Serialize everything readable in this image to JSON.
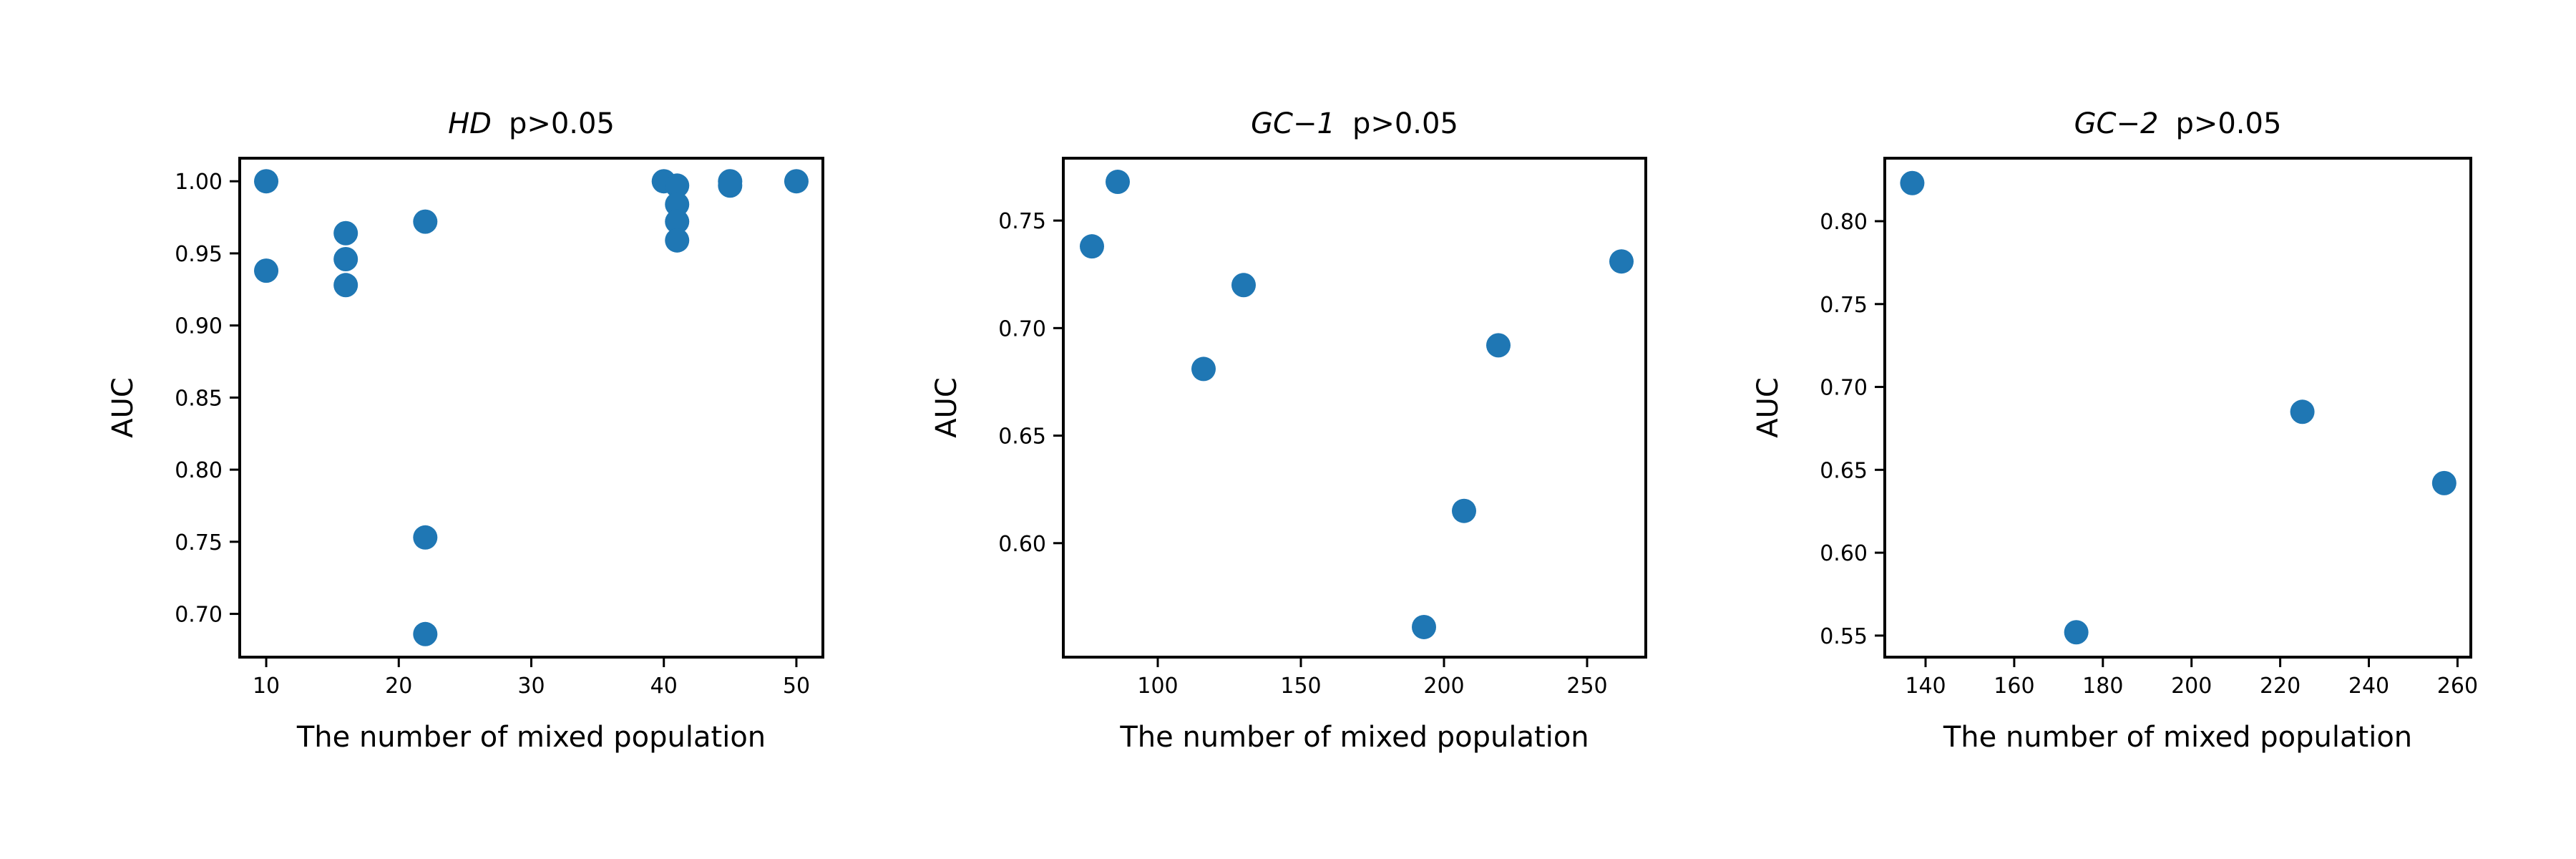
{
  "chart_data": [
    {
      "type": "scatter",
      "title_italic": "HD",
      "title_text": "p>0.05",
      "xlabel": "The number of mixed population",
      "ylabel": "AUC",
      "xlim": [
        8,
        52
      ],
      "ylim": [
        0.67,
        1.016
      ],
      "xticks": [
        10,
        20,
        30,
        40,
        50
      ],
      "xtick_labels": [
        "10",
        "20",
        "30",
        "40",
        "50"
      ],
      "yticks": [
        0.7,
        0.75,
        0.8,
        0.85,
        0.9,
        0.95,
        1.0
      ],
      "ytick_labels": [
        "0.70",
        "0.75",
        "0.80",
        "0.85",
        "0.90",
        "0.95",
        "1.00"
      ],
      "color": "#1f77b4",
      "points": [
        {
          "x": 10,
          "y": 1.0
        },
        {
          "x": 10,
          "y": 0.938
        },
        {
          "x": 16,
          "y": 0.964
        },
        {
          "x": 16,
          "y": 0.946
        },
        {
          "x": 16,
          "y": 0.928
        },
        {
          "x": 22,
          "y": 0.972
        },
        {
          "x": 22,
          "y": 0.753
        },
        {
          "x": 22,
          "y": 0.686
        },
        {
          "x": 40,
          "y": 1.0
        },
        {
          "x": 41,
          "y": 0.997
        },
        {
          "x": 41,
          "y": 0.984
        },
        {
          "x": 41,
          "y": 0.972
        },
        {
          "x": 41,
          "y": 0.959
        },
        {
          "x": 45,
          "y": 1.0
        },
        {
          "x": 45,
          "y": 0.997
        },
        {
          "x": 50,
          "y": 1.0
        }
      ],
      "grid": false
    },
    {
      "type": "scatter",
      "title_italic": "GC−1",
      "title_text": "p>0.05",
      "xlabel": "The number of mixed population",
      "ylabel": "AUC",
      "xlim": [
        67,
        270.5
      ],
      "ylim": [
        0.547,
        0.779
      ],
      "xticks": [
        100,
        150,
        200,
        250
      ],
      "xtick_labels": [
        "100",
        "150",
        "200",
        "250"
      ],
      "yticks": [
        0.6,
        0.65,
        0.7,
        0.75
      ],
      "ytick_labels": [
        "0.60",
        "0.65",
        "0.70",
        "0.75"
      ],
      "color": "#1f77b4",
      "points": [
        {
          "x": 77,
          "y": 0.738
        },
        {
          "x": 86,
          "y": 0.768
        },
        {
          "x": 116,
          "y": 0.681
        },
        {
          "x": 130,
          "y": 0.72
        },
        {
          "x": 193,
          "y": 0.561
        },
        {
          "x": 207,
          "y": 0.615
        },
        {
          "x": 219,
          "y": 0.692
        },
        {
          "x": 262,
          "y": 0.731
        }
      ],
      "grid": false
    },
    {
      "type": "scatter",
      "title_italic": "GC−2",
      "title_text": "p>0.05",
      "xlabel": "The number of mixed population",
      "ylabel": "AUC",
      "xlim": [
        130.8,
        263
      ],
      "ylim": [
        0.537,
        0.838
      ],
      "xticks": [
        140,
        160,
        180,
        200,
        220,
        240,
        260
      ],
      "xtick_labels": [
        "140",
        "160",
        "180",
        "200",
        "220",
        "240",
        "260"
      ],
      "yticks": [
        0.55,
        0.6,
        0.65,
        0.7,
        0.75,
        0.8
      ],
      "ytick_labels": [
        "0.55",
        "0.60",
        "0.65",
        "0.70",
        "0.75",
        "0.80"
      ],
      "color": "#1f77b4",
      "points": [
        {
          "x": 137,
          "y": 0.823
        },
        {
          "x": 174,
          "y": 0.552
        },
        {
          "x": 225,
          "y": 0.685
        },
        {
          "x": 257,
          "y": 0.642
        }
      ],
      "grid": false
    }
  ]
}
